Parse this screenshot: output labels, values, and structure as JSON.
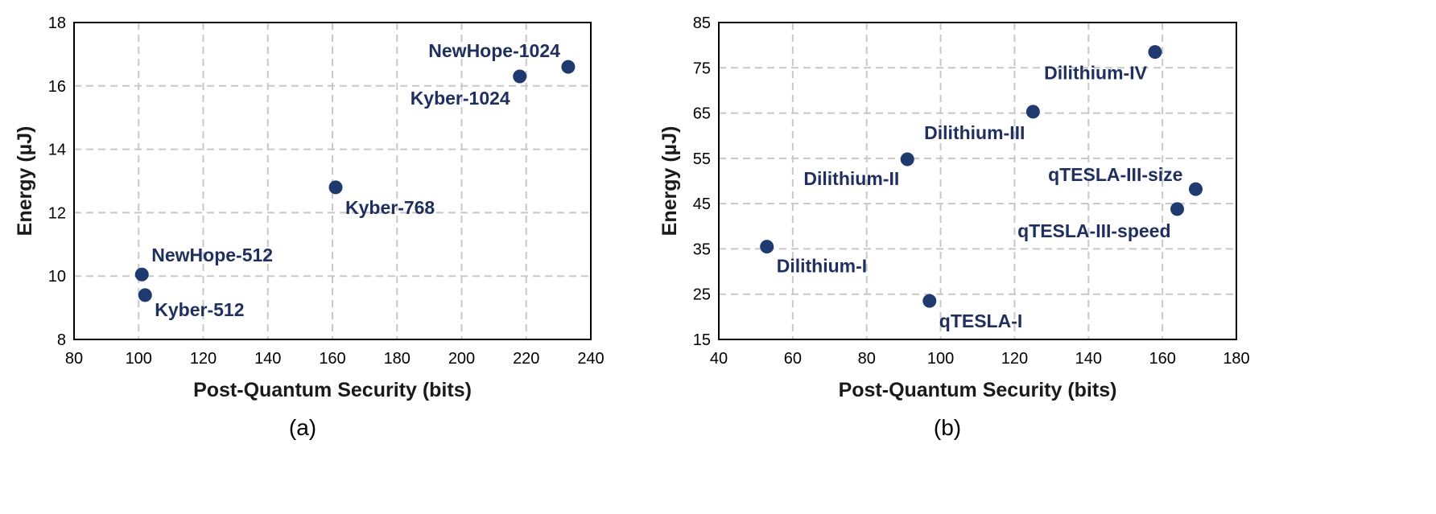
{
  "chart_data": [
    {
      "type": "scatter",
      "panel": "(a)",
      "xlabel": "Post-Quantum Security (bits)",
      "ylabel": "Energy (µJ)",
      "xlim": [
        80,
        240
      ],
      "ylim": [
        8,
        18
      ],
      "xticks": [
        "80",
        "100",
        "120",
        "140",
        "160",
        "180",
        "200",
        "220",
        "240"
      ],
      "yticks": [
        "8",
        "10",
        "12",
        "14",
        "16",
        "18"
      ],
      "grid": true,
      "marker_color": "#1f3a6e",
      "points": [
        {
          "label": "NewHope-512",
          "x": 101,
          "y": 10.05
        },
        {
          "label": "Kyber-512",
          "x": 102,
          "y": 9.4
        },
        {
          "label": "Kyber-768",
          "x": 161,
          "y": 12.8
        },
        {
          "label": "Kyber-1024",
          "x": 218,
          "y": 16.3
        },
        {
          "label": "NewHope-1024",
          "x": 233,
          "y": 16.6
        }
      ]
    },
    {
      "type": "scatter",
      "panel": "(b)",
      "xlabel": "Post-Quantum Security (bits)",
      "ylabel": "Energy (µJ)",
      "xlim": [
        40,
        180
      ],
      "ylim": [
        15,
        85
      ],
      "xticks": [
        "40",
        "60",
        "80",
        "100",
        "120",
        "140",
        "160",
        "180"
      ],
      "yticks": [
        "15",
        "25",
        "35",
        "45",
        "55",
        "65",
        "75",
        "85"
      ],
      "grid": true,
      "marker_color": "#1f3a6e",
      "points": [
        {
          "label": "Dilithium-I",
          "x": 53,
          "y": 35.5
        },
        {
          "label": "Dilithium-II",
          "x": 91,
          "y": 54.8
        },
        {
          "label": "qTESLA-I",
          "x": 97,
          "y": 23.5
        },
        {
          "label": "Dilithium-III",
          "x": 125,
          "y": 65.3
        },
        {
          "label": "Dilithium-IV",
          "x": 158,
          "y": 78.5
        },
        {
          "label": "qTESLA-III-speed",
          "x": 164,
          "y": 43.8
        },
        {
          "label": "qTESLA-III-size",
          "x": 169,
          "y": 48.2
        }
      ]
    }
  ]
}
